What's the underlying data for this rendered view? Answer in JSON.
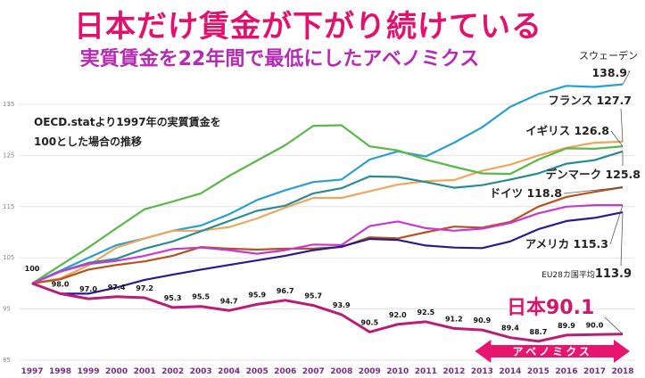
{
  "header": {
    "title": "日本だけ賃金が下がり続けている",
    "subtitle": "実質賃金を22年間で最低にしたアベノミクス",
    "note_line1": "OECD.statより1997年の実質賃金を",
    "note_line2": "100とした場合の推移"
  },
  "chart_data": {
    "type": "line",
    "title": "日本だけ賃金が下がり続けている",
    "subtitle": "実質賃金を22年間で最低にしたアベノミクス",
    "xlabel": "",
    "ylabel": "",
    "ylim": [
      85,
      140
    ],
    "yticks": [
      85,
      95,
      105,
      115,
      125,
      135
    ],
    "grid": true,
    "legend": "direct-labels-right",
    "x": [
      "1997",
      "1998",
      "1999",
      "2000",
      "2001",
      "2002",
      "2003",
      "2004",
      "2005",
      "2006",
      "2007",
      "2008",
      "2009",
      "2010",
      "2011",
      "2012",
      "2013",
      "2014",
      "2015",
      "2016",
      "2017",
      "2018"
    ],
    "series": [
      {
        "name": "スウェーデン",
        "label": "スウェーデン",
        "end_value": "138.9",
        "color": "#2b9ed0",
        "values": [
          100,
          102.5,
          105,
          107.5,
          108.8,
          110.3,
          111.3,
          113.5,
          116.3,
          118.2,
          119.8,
          120.3,
          124.2,
          125.8,
          124.8,
          127.5,
          130.5,
          134.5,
          137,
          138.6,
          138.4,
          138.9
        ]
      },
      {
        "name": "フランス",
        "label": "フランス",
        "end_value": "127.7",
        "color": "#efa65a",
        "values": [
          100,
          101,
          103.5,
          107,
          108.8,
          110.3,
          110.3,
          111,
          112.7,
          114.8,
          116.7,
          116.7,
          118,
          119.3,
          120,
          120.2,
          122,
          123.2,
          125,
          126.5,
          127.5,
          127.7
        ]
      },
      {
        "name": "イギリス",
        "label": "イギリス",
        "end_value": "126.8",
        "color": "#5ab849",
        "values": [
          100,
          103.5,
          107,
          110.8,
          114.5,
          116,
          117.6,
          121,
          124,
          127,
          130.8,
          130.9,
          126.8,
          126,
          124.2,
          122.8,
          121.5,
          121.4,
          124.2,
          126.4,
          126.3,
          126.8
        ]
      },
      {
        "name": "デンマーク",
        "label": "デンマーク",
        "end_value": "125.8",
        "color": "#2a8a95",
        "values": [
          100,
          102.3,
          104,
          104.8,
          106.8,
          108.2,
          110.2,
          112.2,
          114.2,
          115.2,
          117.6,
          118.6,
          120.9,
          120.8,
          119.8,
          118.7,
          119.2,
          120.3,
          121.5,
          123.4,
          124.1,
          125.8
        ]
      },
      {
        "name": "ドイツ",
        "label": "ドイツ",
        "end_value": "118.8",
        "color": "#b5531f",
        "values": [
          100,
          100.8,
          102.7,
          103.6,
          104.3,
          105.4,
          107.1,
          106.8,
          106.6,
          106.8,
          106.8,
          107.1,
          109,
          108.8,
          110,
          111.1,
          110.9,
          112,
          115,
          116.9,
          117.9,
          118.8
        ]
      },
      {
        "name": "アメリカ",
        "label": "アメリカ",
        "end_value": "115.3",
        "color": "#c53ad0",
        "values": [
          100,
          102.3,
          103.8,
          104.4,
          105.4,
          106.7,
          107,
          106.5,
          105.8,
          106.5,
          107.6,
          107.5,
          111.2,
          112.1,
          110.8,
          110.3,
          110.7,
          111.8,
          113.7,
          115,
          115.3,
          115.3
        ]
      },
      {
        "name": "EU28カ国平均",
        "label": "EU28カ国平均",
        "end_value": "113.9",
        "color": "#2c1a8a",
        "values": [
          100,
          98.0,
          98.0,
          99.2,
          100.7,
          101.7,
          102.7,
          103.6,
          104.5,
          105.4,
          106.5,
          107.2,
          108.7,
          108.5,
          107.4,
          107,
          106.9,
          108.2,
          110.6,
          112.2,
          112.8,
          113.9
        ]
      },
      {
        "name": "日本",
        "label": "日本",
        "end_value": "90.1",
        "color": "#b81e78",
        "values": [
          100,
          98.0,
          97.0,
          97.4,
          97.2,
          95.3,
          95.5,
          94.7,
          95.9,
          96.7,
          95.7,
          93.9,
          90.5,
          92.0,
          92.5,
          91.2,
          90.9,
          89.4,
          88.7,
          89.9,
          90.0,
          90.1
        ],
        "data_labels": [
          "100",
          "98.0",
          "97.0",
          "97.4",
          "97.2",
          "95.3",
          "95.5",
          "94.7",
          "95.9",
          "96.7",
          "95.7",
          "93.9",
          "90.5",
          "92.0",
          "92.5",
          "91.2",
          "90.9",
          "89.4",
          "88.7",
          "89.9",
          "90.0",
          ""
        ]
      }
    ],
    "annotations": [
      {
        "text": "アベノミクス",
        "type": "double-arrow",
        "from": "2013",
        "to": "2018",
        "color": "#e8156f"
      }
    ]
  }
}
